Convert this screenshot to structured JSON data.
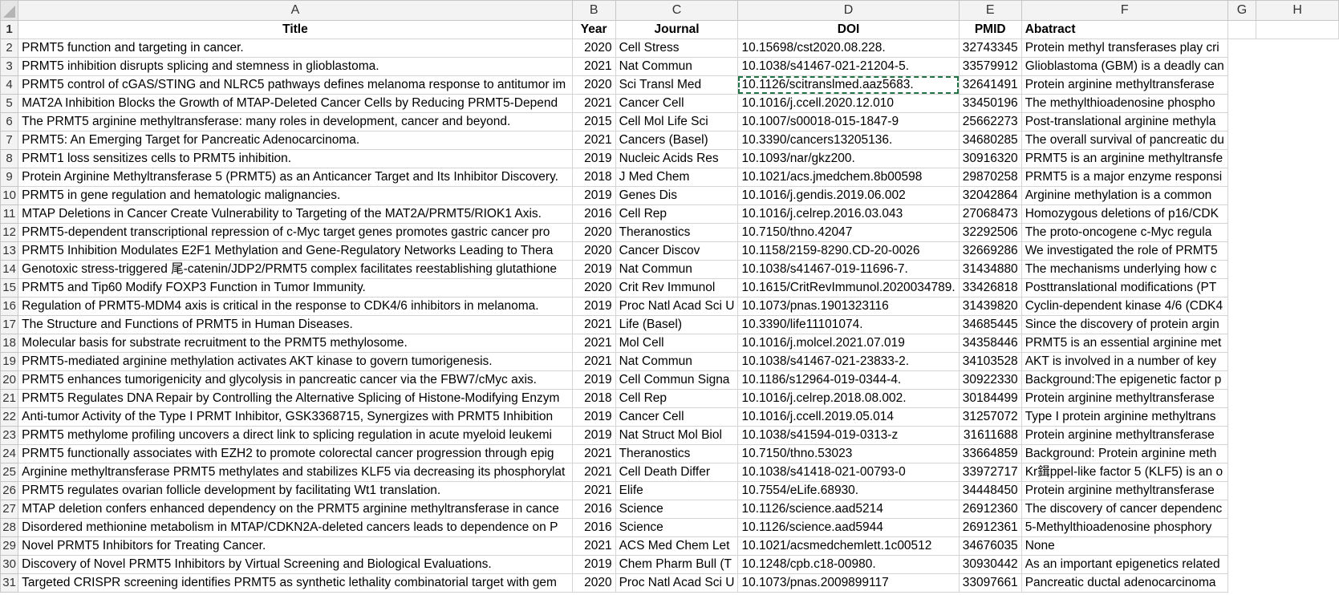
{
  "columns": [
    "A",
    "B",
    "C",
    "D",
    "E",
    "F",
    "G",
    "H"
  ],
  "header": {
    "row_number": "1",
    "title": "Title",
    "year": "Year",
    "journal": "Journal",
    "doi": "DOI",
    "pmid": "PMID",
    "abstract": "Abatract"
  },
  "rows": [
    {
      "n": "2",
      "title": "PRMT5 function and targeting in cancer.",
      "year": "2020",
      "journal": "Cell Stress",
      "doi": "10.15698/cst2020.08.228.",
      "pmid": "32743345",
      "abstract": "Protein methyl transferases play cri"
    },
    {
      "n": "3",
      "title": "PRMT5 inhibition disrupts splicing and stemness in glioblastoma.",
      "year": "2021",
      "journal": "Nat Commun",
      "doi": "10.1038/s41467-021-21204-5.",
      "pmid": "33579912",
      "abstract": "Glioblastoma (GBM) is a deadly can"
    },
    {
      "n": "4",
      "title": "PRMT5 control of cGAS/STING and NLRC5 pathways defines melanoma response to antitumor im",
      "year": "2020",
      "journal": "Sci Transl Med",
      "doi": "10.1126/scitranslmed.aaz5683.",
      "pmid": "32641491",
      "abstract": "Protein arginine methyltransferase"
    },
    {
      "n": "5",
      "title": "MAT2A Inhibition Blocks the Growth of MTAP-Deleted Cancer Cells by Reducing PRMT5-Depend",
      "year": "2021",
      "journal": "Cancer Cell",
      "doi": "10.1016/j.ccell.2020.12.010",
      "pmid": "33450196",
      "abstract": "The methylthioadenosine phospho"
    },
    {
      "n": "6",
      "title": "The PRMT5 arginine methyltransferase: many roles in development, cancer and beyond.",
      "year": "2015",
      "journal": "Cell Mol Life Sci",
      "doi": "10.1007/s00018-015-1847-9",
      "pmid": "25662273",
      "abstract": "Post-translational arginine methyla"
    },
    {
      "n": "7",
      "title": "PRMT5: An Emerging Target for Pancreatic Adenocarcinoma.",
      "year": "2021",
      "journal": "Cancers (Basel)",
      "doi": "10.3390/cancers13205136.",
      "pmid": "34680285",
      "abstract": "The overall survival of pancreatic du"
    },
    {
      "n": "8",
      "title": "PRMT1 loss sensitizes cells to PRMT5 inhibition.",
      "year": "2019",
      "journal": "Nucleic Acids Res",
      "doi": "10.1093/nar/gkz200.",
      "pmid": "30916320",
      "abstract": "PRMT5 is an arginine methyltransfe"
    },
    {
      "n": "9",
      "title": "Protein Arginine Methyltransferase 5 (PRMT5) as an Anticancer Target and Its Inhibitor Discovery.",
      "year": "2018",
      "journal": "J Med Chem",
      "doi": "10.1021/acs.jmedchem.8b00598",
      "pmid": "29870258",
      "abstract": "PRMT5 is a major enzyme responsi"
    },
    {
      "n": "10",
      "title": "PRMT5 in gene regulation and hematologic malignancies.",
      "year": "2019",
      "journal": "Genes Dis",
      "doi": "10.1016/j.gendis.2019.06.002",
      "pmid": "32042864",
      "abstract": "Arginine methylation is a common"
    },
    {
      "n": "11",
      "title": "MTAP Deletions in Cancer Create Vulnerability to Targeting of the MAT2A/PRMT5/RIOK1 Axis.",
      "year": "2016",
      "journal": "Cell Rep",
      "doi": "10.1016/j.celrep.2016.03.043",
      "pmid": "27068473",
      "abstract": "Homozygous deletions of p16/CDK"
    },
    {
      "n": "12",
      "title": "PRMT5-dependent transcriptional repression of c-Myc target genes promotes gastric cancer pro",
      "year": "2020",
      "journal": "Theranostics",
      "doi": "10.7150/thno.42047",
      "pmid": "32292506",
      "abstract": "The proto-oncogene c-Myc regula"
    },
    {
      "n": "13",
      "title": "PRMT5 Inhibition Modulates E2F1 Methylation and Gene-Regulatory Networks Leading to Thera",
      "year": "2020",
      "journal": "Cancer Discov",
      "doi": "10.1158/2159-8290.CD-20-0026",
      "pmid": "32669286",
      "abstract": "We investigated the role of PRMT5"
    },
    {
      "n": "14",
      "title": "Genotoxic stress-triggered 尾-catenin/JDP2/PRMT5 complex facilitates reestablishing glutathione",
      "year": "2019",
      "journal": "Nat Commun",
      "doi": "10.1038/s41467-019-11696-7.",
      "pmid": "31434880",
      "abstract": "The mechanisms underlying how c"
    },
    {
      "n": "15",
      "title": "PRMT5 and Tip60 Modify FOXP3 Function in Tumor Immunity.",
      "year": "2020",
      "journal": "Crit Rev Immunol",
      "doi": "10.1615/CritRevImmunol.2020034789.",
      "pmid": "33426818",
      "abstract": "Posttranslational modifications (PT"
    },
    {
      "n": "16",
      "title": "Regulation of PRMT5-MDM4 axis is critical in the response to CDK4/6 inhibitors in melanoma.",
      "year": "2019",
      "journal": "Proc Natl Acad Sci U",
      "doi": "10.1073/pnas.1901323116",
      "pmid": "31439820",
      "abstract": "Cyclin-dependent kinase 4/6 (CDK4"
    },
    {
      "n": "17",
      "title": "The Structure and Functions of PRMT5 in Human Diseases.",
      "year": "2021",
      "journal": "Life (Basel)",
      "doi": "10.3390/life11101074.",
      "pmid": "34685445",
      "abstract": "Since the discovery of protein argin"
    },
    {
      "n": "18",
      "title": "Molecular basis for substrate recruitment to the PRMT5 methylosome.",
      "year": "2021",
      "journal": "Mol Cell",
      "doi": "10.1016/j.molcel.2021.07.019",
      "pmid": "34358446",
      "abstract": "PRMT5 is an essential arginine met"
    },
    {
      "n": "19",
      "title": "PRMT5-mediated arginine methylation activates AKT kinase to govern tumorigenesis.",
      "year": "2021",
      "journal": "Nat Commun",
      "doi": "10.1038/s41467-021-23833-2.",
      "pmid": "34103528",
      "abstract": "AKT is involved in a number of key"
    },
    {
      "n": "20",
      "title": "PRMT5 enhances tumorigenicity and glycolysis in pancreatic cancer via the FBW7/cMyc axis.",
      "year": "2019",
      "journal": "Cell Commun Signa",
      "doi": "10.1186/s12964-019-0344-4.",
      "pmid": "30922330",
      "abstract": "Background:The epigenetic factor p"
    },
    {
      "n": "21",
      "title": "PRMT5 Regulates DNA Repair by Controlling the Alternative Splicing of Histone-Modifying Enzym",
      "year": "2018",
      "journal": "Cell Rep",
      "doi": "10.1016/j.celrep.2018.08.002.",
      "pmid": "30184499",
      "abstract": "Protein arginine methyltransferase"
    },
    {
      "n": "22",
      "title": "Anti-tumor Activity of the Type I PRMT Inhibitor, GSK3368715, Synergizes with PRMT5 Inhibition",
      "year": "2019",
      "journal": "Cancer Cell",
      "doi": "10.1016/j.ccell.2019.05.014",
      "pmid": "31257072",
      "abstract": "Type I protein arginine methyltrans"
    },
    {
      "n": "23",
      "title": "PRMT5 methylome profiling uncovers a direct link to splicing regulation in acute myeloid leukemi",
      "year": "2019",
      "journal": "Nat Struct Mol Biol",
      "doi": "10.1038/s41594-019-0313-z",
      "pmid": "31611688",
      "abstract": "Protein arginine methyltransferase"
    },
    {
      "n": "24",
      "title": "PRMT5 functionally associates with EZH2 to promote colorectal cancer progression through epig",
      "year": "2021",
      "journal": "Theranostics",
      "doi": "10.7150/thno.53023",
      "pmid": "33664859",
      "abstract": "Background: Protein arginine meth"
    },
    {
      "n": "25",
      "title": "Arginine methyltransferase PRMT5 methylates and stabilizes KLF5 via decreasing its phosphorylat",
      "year": "2021",
      "journal": "Cell Death Differ",
      "doi": "10.1038/s41418-021-00793-0",
      "pmid": "33972717",
      "abstract": "Kr鍓ppel-like factor 5 (KLF5) is an o"
    },
    {
      "n": "26",
      "title": "PRMT5 regulates ovarian follicle development by facilitating Wt1 translation.",
      "year": "2021",
      "journal": "Elife",
      "doi": "10.7554/eLife.68930.",
      "pmid": "34448450",
      "abstract": "Protein arginine methyltransferase"
    },
    {
      "n": "27",
      "title": "MTAP deletion confers enhanced dependency on the PRMT5 arginine methyltransferase in cance",
      "year": "2016",
      "journal": "Science",
      "doi": "10.1126/science.aad5214",
      "pmid": "26912360",
      "abstract": "The discovery of cancer dependenc"
    },
    {
      "n": "28",
      "title": "Disordered methionine metabolism in MTAP/CDKN2A-deleted cancers leads to dependence on P",
      "year": "2016",
      "journal": "Science",
      "doi": "10.1126/science.aad5944",
      "pmid": "26912361",
      "abstract": "5-Methylthioadenosine phosphory"
    },
    {
      "n": "29",
      "title": "Novel PRMT5 Inhibitors for Treating Cancer.",
      "year": "2021",
      "journal": "ACS Med Chem Let",
      "doi": "10.1021/acsmedchemlett.1c00512",
      "pmid": "34676035",
      "abstract": "None"
    },
    {
      "n": "30",
      "title": "Discovery of Novel PRMT5 Inhibitors by Virtual Screening and Biological Evaluations.",
      "year": "2019",
      "journal": "Chem Pharm Bull (T",
      "doi": "10.1248/cpb.c18-00980.",
      "pmid": "30930442",
      "abstract": "As an important epigenetics related"
    },
    {
      "n": "31",
      "title": "Targeted CRISPR screening identifies PRMT5 as synthetic lethality combinatorial target with gem",
      "year": "2020",
      "journal": "Proc Natl Acad Sci U",
      "doi": "10.1073/pnas.2009899117",
      "pmid": "33097661",
      "abstract": "Pancreatic ductal adenocarcinoma"
    }
  ],
  "selected_cell": "D4",
  "colors": {
    "selection_border": "#217346",
    "grid": "#d4d4d4",
    "header_bg": "#f3f3f3"
  }
}
